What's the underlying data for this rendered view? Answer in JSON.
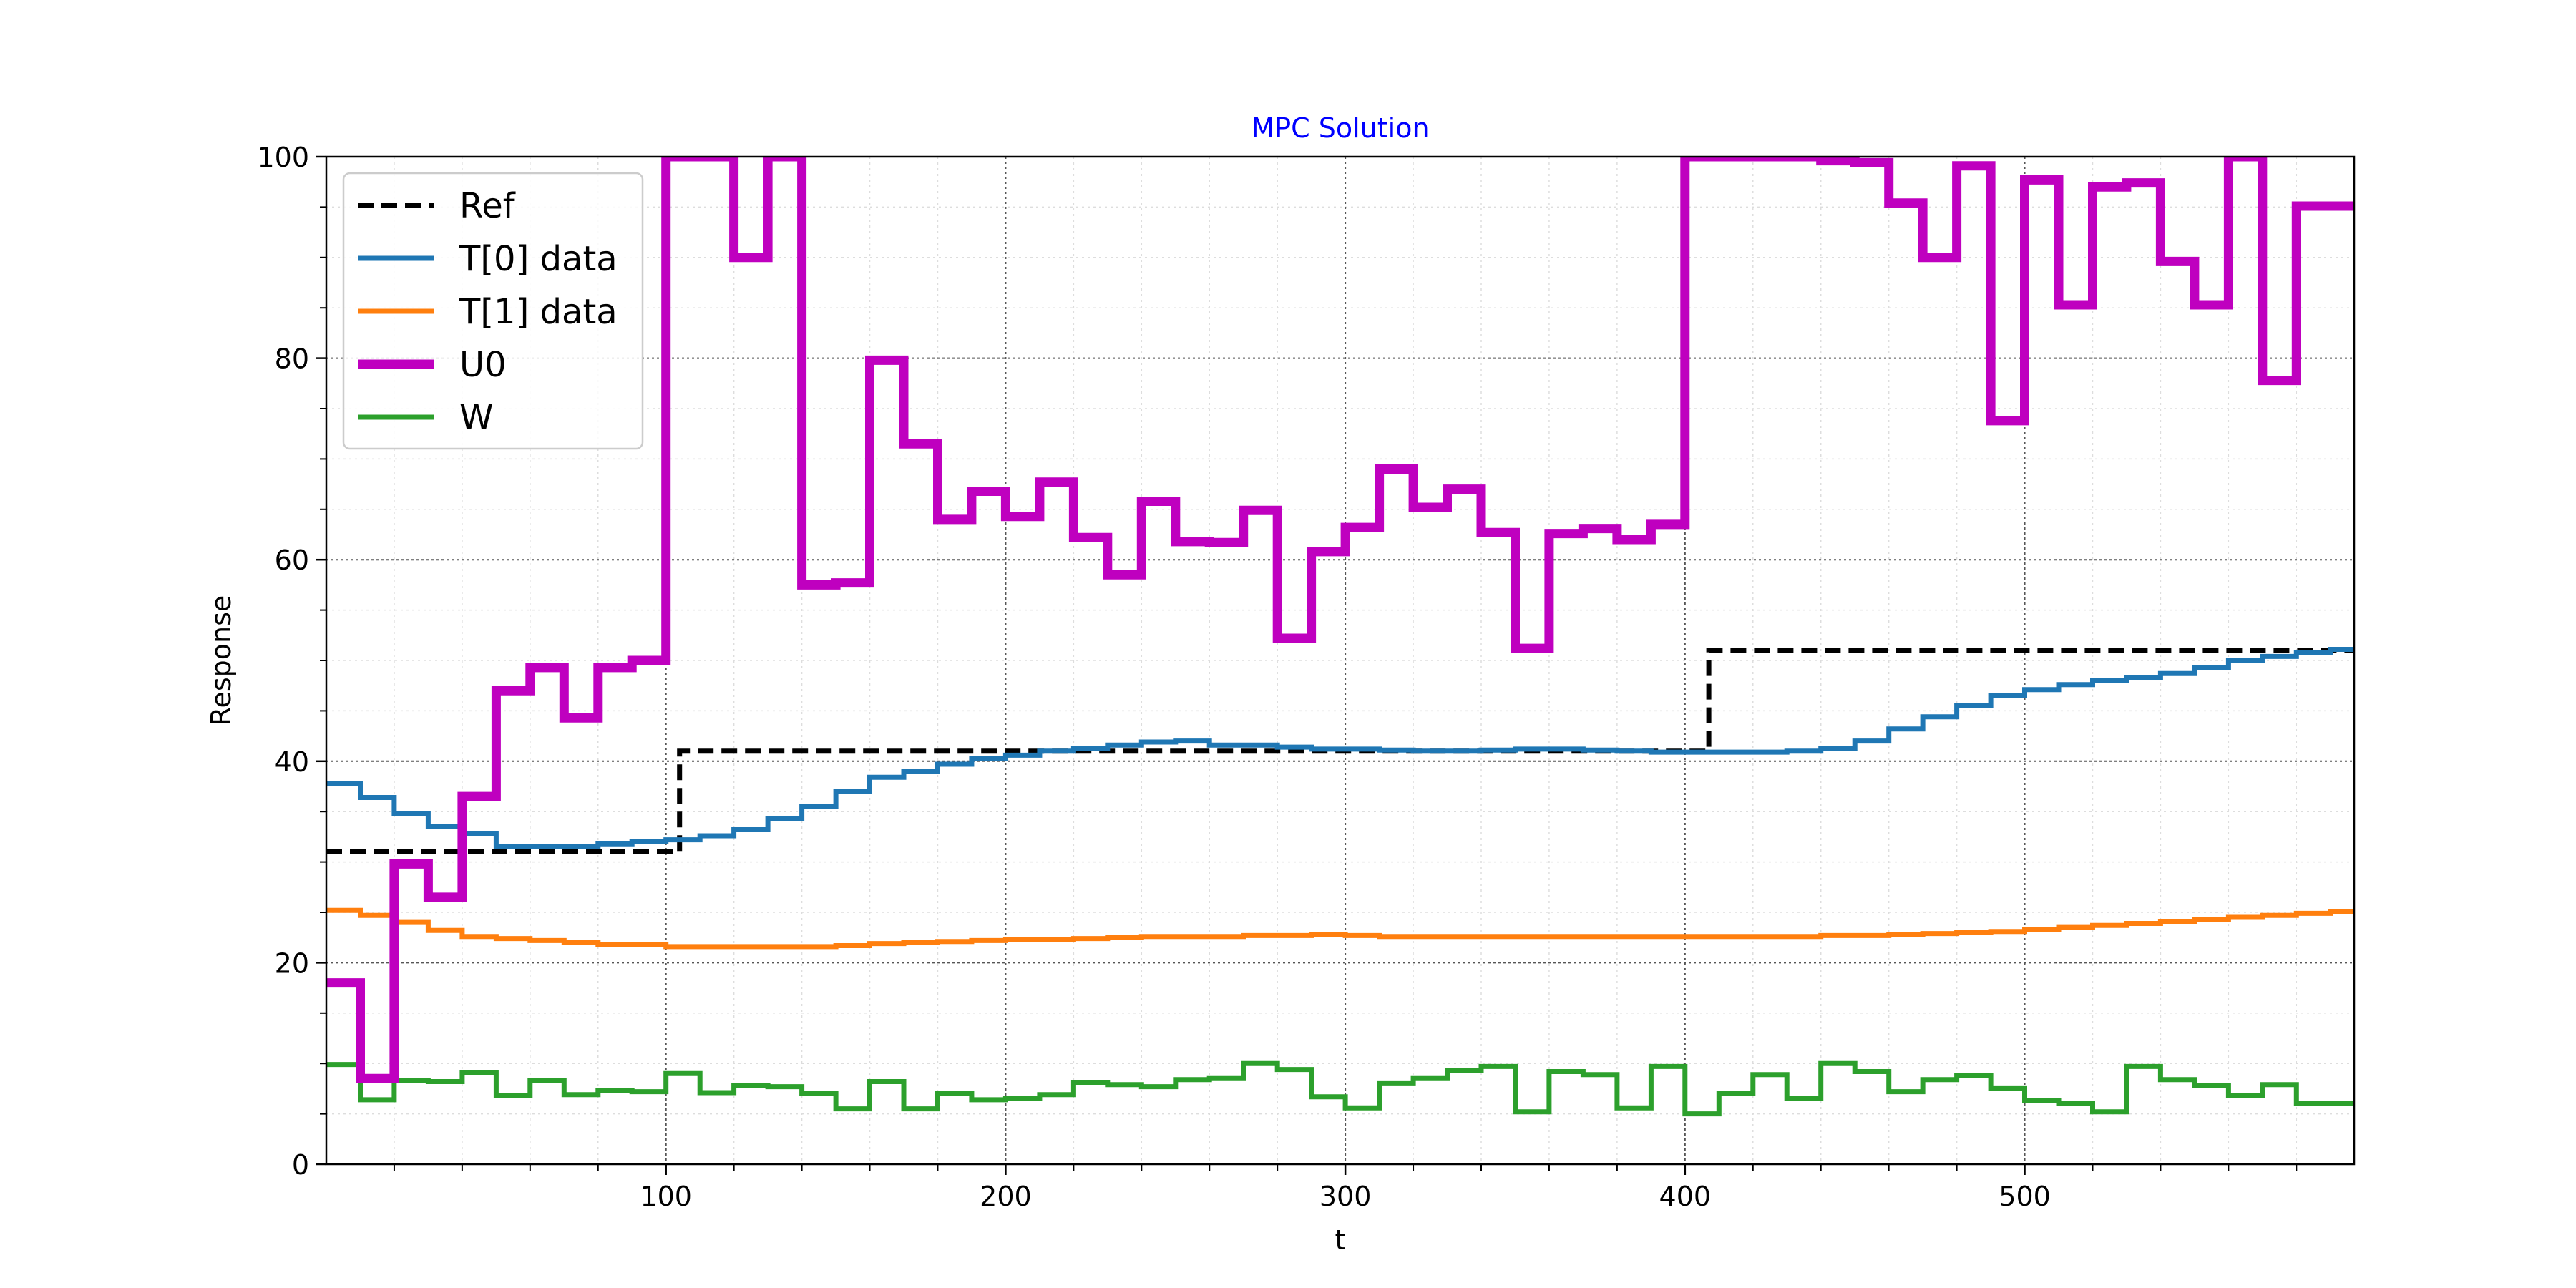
{
  "chart_data": {
    "type": "line",
    "title": "MPC Solution",
    "title_color": "#0000ff",
    "xlabel": "t",
    "ylabel": "Response",
    "xlim": [
      0,
      597
    ],
    "ylim": [
      0,
      100
    ],
    "grid": true,
    "minor_grid": true,
    "legend_position": "top-left",
    "x_ticks": [
      100,
      200,
      300,
      400,
      500
    ],
    "x_tick_labels": [
      "100",
      "200",
      "300",
      "400",
      "500"
    ],
    "y_ticks": [
      0,
      20,
      40,
      60,
      80,
      100
    ],
    "y_tick_labels": [
      "0",
      "20",
      "40",
      "60",
      "80",
      "100"
    ],
    "step": 10,
    "series": [
      {
        "name": "Ref",
        "color": "#000000",
        "style": "dashed",
        "segments": [
          [
            0,
            31
          ],
          [
            104,
            41
          ],
          [
            407,
            51
          ]
        ]
      },
      {
        "name": "T[0] data",
        "color": "#1f77b4",
        "style": "solid",
        "values": [
          37.8,
          36.4,
          34.8,
          33.5,
          32.8,
          31.5,
          31.5,
          31.5,
          31.8,
          32.0,
          32.2,
          32.6,
          33.2,
          34.3,
          35.5,
          37.0,
          38.4,
          39.0,
          39.7,
          40.3,
          40.6,
          41.0,
          41.3,
          41.6,
          41.9,
          42.0,
          41.6,
          41.6,
          41.4,
          41.2,
          41.2,
          41.1,
          41.0,
          41.0,
          41.1,
          41.2,
          41.2,
          41.1,
          41.0,
          40.9,
          40.9,
          40.9,
          40.9,
          41.0,
          41.3,
          42.0,
          43.2,
          44.4,
          45.5,
          46.5,
          47.1,
          47.6,
          48.0,
          48.3,
          48.7,
          49.3,
          50.0,
          50.4,
          50.8,
          51.1
        ]
      },
      {
        "name": "T[1] data",
        "color": "#ff7f0e",
        "style": "solid",
        "values": [
          25.2,
          24.7,
          24.0,
          23.2,
          22.6,
          22.4,
          22.2,
          22.0,
          21.8,
          21.8,
          21.6,
          21.6,
          21.6,
          21.6,
          21.6,
          21.7,
          21.9,
          22.0,
          22.1,
          22.2,
          22.3,
          22.3,
          22.4,
          22.5,
          22.6,
          22.6,
          22.6,
          22.7,
          22.7,
          22.8,
          22.7,
          22.6,
          22.6,
          22.6,
          22.6,
          22.6,
          22.6,
          22.6,
          22.6,
          22.6,
          22.6,
          22.6,
          22.6,
          22.6,
          22.7,
          22.7,
          22.8,
          22.9,
          23.0,
          23.1,
          23.3,
          23.5,
          23.7,
          23.9,
          24.1,
          24.3,
          24.5,
          24.7,
          24.9,
          25.1
        ]
      },
      {
        "name": "U0",
        "color": "#bf00bf",
        "style": "solid",
        "thick": true,
        "values": [
          18.0,
          8.5,
          29.8,
          26.5,
          36.5,
          47.0,
          49.3,
          44.3,
          49.3,
          50.0,
          100,
          100,
          90.0,
          100,
          57.5,
          57.7,
          79.8,
          71.5,
          64.0,
          66.8,
          64.3,
          67.7,
          62.2,
          58.5,
          65.8,
          61.8,
          61.7,
          64.9,
          52.2,
          60.8,
          63.2,
          69.0,
          65.2,
          67.0,
          62.7,
          51.2,
          62.6,
          63.1,
          62.0,
          63.5,
          100,
          100,
          100,
          100,
          99.6,
          99.4,
          95.4,
          90.0,
          99.1,
          73.8,
          97.7,
          85.3,
          97.0,
          97.4,
          89.6,
          85.3,
          100,
          77.8,
          95.1,
          95.1
        ]
      },
      {
        "name": "W",
        "color": "#2ca02c",
        "style": "solid",
        "values": [
          9.9,
          6.4,
          8.3,
          8.2,
          9.1,
          6.8,
          8.3,
          6.9,
          7.3,
          7.2,
          9.0,
          7.1,
          7.8,
          7.7,
          7.0,
          5.5,
          8.2,
          5.5,
          7.0,
          6.4,
          6.5,
          6.9,
          8.1,
          7.9,
          7.7,
          8.4,
          8.5,
          10.0,
          9.4,
          6.7,
          5.6,
          8.0,
          8.5,
          9.3,
          9.7,
          5.2,
          9.2,
          8.9,
          5.6,
          9.7,
          5.0,
          7.0,
          8.9,
          6.5,
          10.0,
          9.2,
          7.2,
          8.4,
          8.8,
          7.5,
          6.3,
          6.0,
          5.2,
          9.7,
          8.4,
          7.8,
          6.8,
          7.9,
          6.0,
          6.0
        ]
      }
    ]
  }
}
